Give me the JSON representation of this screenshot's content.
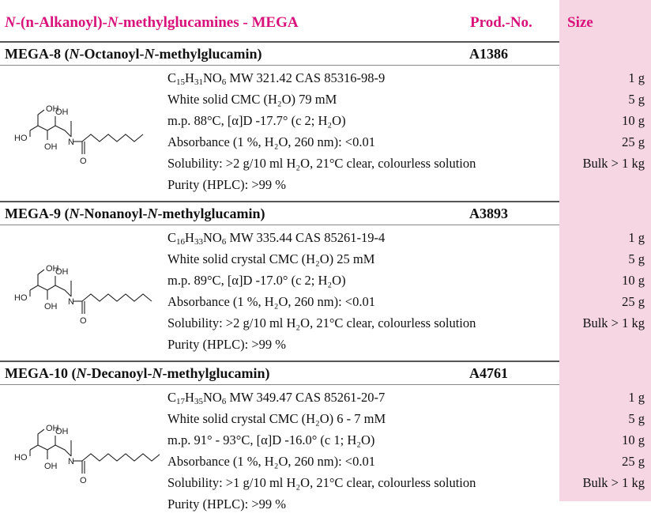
{
  "header": {
    "title_n1": "N",
    "title_mid": "-(n-Alkanoyl)-",
    "title_n2": "N",
    "title_rest": "-methylglucamines - MEGA",
    "prod_no": "Prod.-No.",
    "size": "Size"
  },
  "products": [
    {
      "name_prefix": "MEGA-8 (",
      "n1": "N",
      "name_mid": "-Octanoyl-",
      "n2": "N",
      "name_suffix": "-methylglucamin)",
      "prod_no": "A1386",
      "formula": {
        "c": "C",
        "c_n": "15",
        "h": "H",
        "h_n": "31",
        "rest": "NO",
        "o_n": "6"
      },
      "mw_cas": " MW 321.42 CAS 85316-98-9",
      "props": [
        "White solid CMC (H₂O) 79 mM",
        "m.p. 88°C, [α]D -17.7° (c 2; H₂O)",
        "Absorbance (1 %, H₂O, 260 nm): <0.01",
        "Solubility: >2 g/10 ml H₂O, 21°C clear, colourless solution",
        "Purity (HPLC): >99 %"
      ],
      "sizes": [
        "1 g",
        "5 g",
        "10 g",
        "25 g",
        "Bulk > 1 kg"
      ]
    },
    {
      "name_prefix": "MEGA-9 (",
      "n1": "N",
      "name_mid": "-Nonanoyl-",
      "n2": "N",
      "name_suffix": "-methylglucamin)",
      "prod_no": "A3893",
      "formula": {
        "c": "C",
        "c_n": "16",
        "h": "H",
        "h_n": "33",
        "rest": "NO",
        "o_n": "6"
      },
      "mw_cas": " MW 335.44 CAS 85261-19-4",
      "props": [
        "White solid crystal CMC (H₂O) 25 mM",
        "m.p. 89°C, [α]D -17.0° (c 2; H₂O)",
        "Absorbance (1 %, H₂O, 260 nm): <0.01",
        "Solubility: >2 g/10 ml H₂O, 21°C clear, colourless solution",
        "Purity (HPLC): >99 %"
      ],
      "sizes": [
        "1 g",
        "5 g",
        "10 g",
        "25 g",
        "Bulk > 1 kg"
      ]
    },
    {
      "name_prefix": "MEGA-10 (",
      "n1": "N",
      "name_mid": "-Decanoyl-",
      "n2": "N",
      "name_suffix": "-methylglucamin)",
      "prod_no": "A4761",
      "formula": {
        "c": "C",
        "c_n": "17",
        "h": "H",
        "h_n": "35",
        "rest": "NO",
        "o_n": "6"
      },
      "mw_cas": " MW 349.47 CAS 85261-20-7",
      "props": [
        "White solid crystal CMC (H₂O) 6 - 7 mM",
        "m.p. 91° - 93°C, [α]D -16.0° (c 1; H₂O)",
        "Absorbance (1 %, H₂O, 260 nm): <0.01",
        "Solubility: >1 g/10 ml H₂O, 21°C clear, colourless solution",
        "Purity (HPLC): >99 %"
      ],
      "sizes": [
        "1 g",
        "5 g",
        "10 g",
        "25 g",
        "Bulk > 1 kg"
      ]
    }
  ],
  "structure_labels": {
    "oh": "OH",
    "ho": "HO",
    "n": "N",
    "o": "O"
  }
}
